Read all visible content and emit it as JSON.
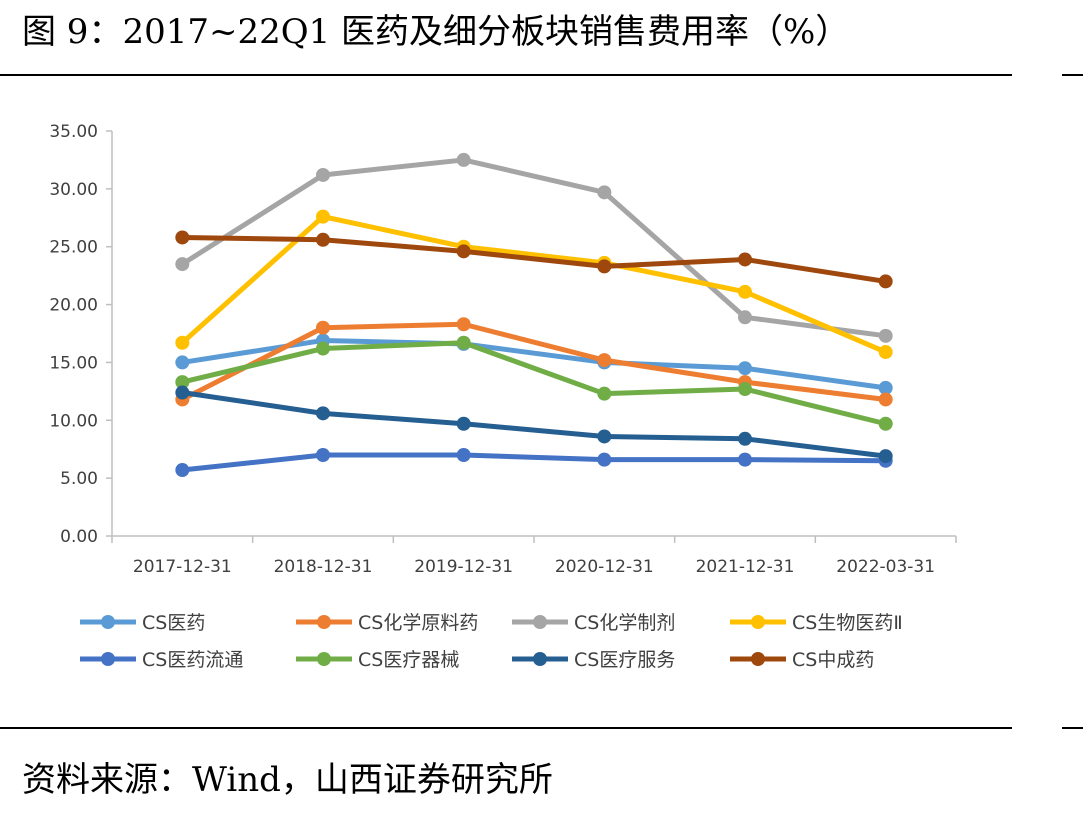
{
  "figure": {
    "title": "图 9：2017~22Q1 医药及细分板块销售费用率（%）",
    "source": "资料来源：Wind，山西证券研究所"
  },
  "chart_data": {
    "type": "line",
    "title": "",
    "xlabel": "",
    "ylabel": "",
    "ylim": [
      0,
      35
    ],
    "yticks": [
      "0.00",
      "5.00",
      "10.00",
      "15.00",
      "20.00",
      "25.00",
      "30.00",
      "35.00"
    ],
    "categories": [
      "2017-12-31",
      "2018-12-31",
      "2019-12-31",
      "2020-12-31",
      "2021-12-31",
      "2022-03-31"
    ],
    "grid": false,
    "legend_position": "bottom",
    "series": [
      {
        "name": "CS医药",
        "color": "#5B9BD5",
        "values": [
          15.0,
          16.9,
          16.6,
          15.0,
          14.5,
          12.8
        ]
      },
      {
        "name": "CS化学原料药",
        "color": "#ED7D31",
        "values": [
          11.8,
          18.0,
          18.3,
          15.2,
          13.3,
          11.8
        ]
      },
      {
        "name": "CS化学制剂",
        "color": "#A5A5A5",
        "values": [
          23.5,
          31.2,
          32.5,
          29.7,
          18.9,
          17.3
        ]
      },
      {
        "name": "CS生物医药Ⅱ",
        "color": "#FFC000",
        "values": [
          16.7,
          27.6,
          25.0,
          23.6,
          21.1,
          15.9
        ]
      },
      {
        "name": "CS医药流通",
        "color": "#4472C4",
        "values": [
          5.7,
          7.0,
          7.0,
          6.6,
          6.6,
          6.5
        ]
      },
      {
        "name": "CS医疗器械",
        "color": "#70AD47",
        "values": [
          13.3,
          16.2,
          16.7,
          12.3,
          12.7,
          9.7
        ]
      },
      {
        "name": "CS医疗服务",
        "color": "#255E91",
        "values": [
          12.4,
          10.6,
          9.7,
          8.6,
          8.4,
          6.9
        ]
      },
      {
        "name": "CS中成药",
        "color": "#9E480E",
        "values": [
          25.8,
          25.6,
          24.6,
          23.3,
          23.9,
          22.0
        ]
      }
    ]
  }
}
